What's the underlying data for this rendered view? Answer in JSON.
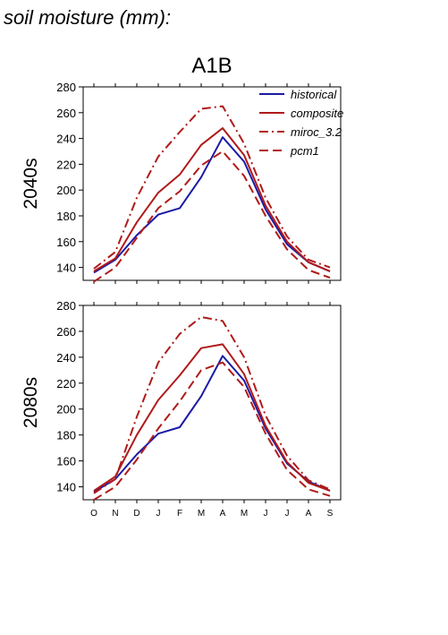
{
  "figure_title": "soil moisture (mm):",
  "scenario": "A1B",
  "legend": [
    {
      "name": "historical",
      "color": "#1a1aa6",
      "dash": "solid"
    },
    {
      "name": "composite",
      "color": "#b01a1a",
      "dash": "solid"
    },
    {
      "name": "miroc_3.2",
      "color": "#b01a1a",
      "dash": "dashdot"
    },
    {
      "name": "pcm1",
      "color": "#b01a1a",
      "dash": "dash"
    }
  ],
  "chart_data": [
    {
      "type": "line",
      "row_label": "2040s",
      "categories": [
        "O",
        "N",
        "D",
        "J",
        "F",
        "M",
        "A",
        "M",
        "J",
        "J",
        "A",
        "S"
      ],
      "ylim": [
        130,
        280
      ],
      "yticks": [
        140,
        160,
        180,
        200,
        220,
        240,
        260,
        280
      ],
      "series": [
        {
          "name": "historical",
          "color": "#1a1aa6",
          "dash": "solid",
          "values": [
            136,
            146,
            165,
            181,
            186,
            210,
            241,
            222,
            185,
            158,
            144,
            137
          ]
        },
        {
          "name": "composite",
          "color": "#b01a1a",
          "dash": "solid",
          "values": [
            137,
            147,
            175,
            198,
            212,
            235,
            248,
            227,
            188,
            160,
            144,
            137
          ]
        },
        {
          "name": "miroc_3.2",
          "color": "#b01a1a",
          "dash": "dashdot",
          "values": [
            139,
            152,
            194,
            226,
            245,
            263,
            265,
            236,
            194,
            164,
            146,
            140
          ]
        },
        {
          "name": "pcm1",
          "color": "#b01a1a",
          "dash": "dash",
          "values": [
            129,
            140,
            163,
            186,
            199,
            219,
            230,
            211,
            180,
            154,
            138,
            132
          ]
        }
      ]
    },
    {
      "type": "line",
      "row_label": "2080s",
      "categories": [
        "O",
        "N",
        "D",
        "J",
        "F",
        "M",
        "A",
        "M",
        "J",
        "J",
        "A",
        "S"
      ],
      "ylim": [
        130,
        280
      ],
      "yticks": [
        140,
        160,
        180,
        200,
        220,
        240,
        260,
        280
      ],
      "series": [
        {
          "name": "historical",
          "color": "#1a1aa6",
          "dash": "solid",
          "values": [
            136,
            146,
            165,
            181,
            186,
            210,
            241,
            222,
            185,
            158,
            144,
            137
          ]
        },
        {
          "name": "composite",
          "color": "#b01a1a",
          "dash": "solid",
          "values": [
            137,
            148,
            180,
            207,
            226,
            247,
            250,
            227,
            187,
            159,
            143,
            137
          ]
        },
        {
          "name": "miroc_3.2",
          "color": "#b01a1a",
          "dash": "dashdot",
          "values": [
            135,
            146,
            194,
            236,
            258,
            271,
            268,
            240,
            195,
            164,
            145,
            138
          ]
        },
        {
          "name": "pcm1",
          "color": "#b01a1a",
          "dash": "dash",
          "values": [
            130,
            140,
            161,
            185,
            206,
            230,
            236,
            217,
            181,
            153,
            138,
            133
          ]
        }
      ]
    }
  ]
}
